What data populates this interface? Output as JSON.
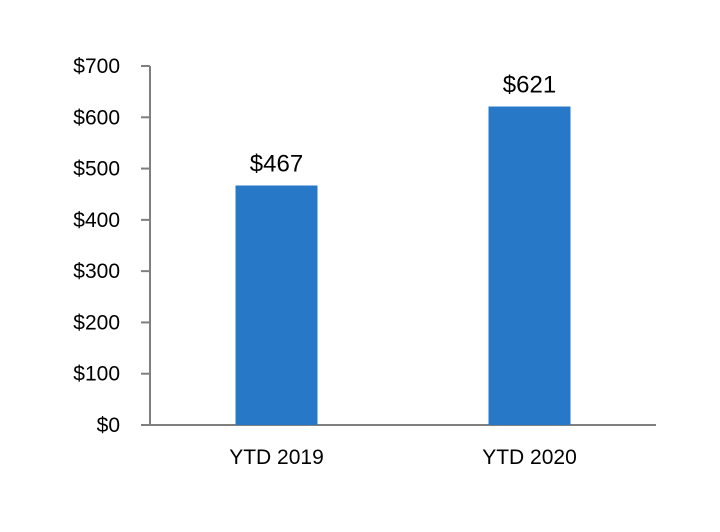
{
  "chart_data": {
    "type": "bar",
    "categories": [
      "YTD 2019",
      "YTD 2020"
    ],
    "values": [
      467,
      621
    ],
    "value_labels": [
      "$467",
      "$621"
    ],
    "title": "",
    "xlabel": "",
    "ylabel": "",
    "ylim": [
      0,
      700
    ],
    "yticks": [
      0,
      100,
      200,
      300,
      400,
      500,
      600,
      700
    ],
    "ytick_labels": [
      "$0",
      "$100",
      "$200",
      "$300",
      "$400",
      "$500",
      "$600",
      "$700"
    ],
    "grid": false,
    "legend": "none",
    "bar_color": "#2878c8",
    "axis_color": "#7f7f7f"
  }
}
